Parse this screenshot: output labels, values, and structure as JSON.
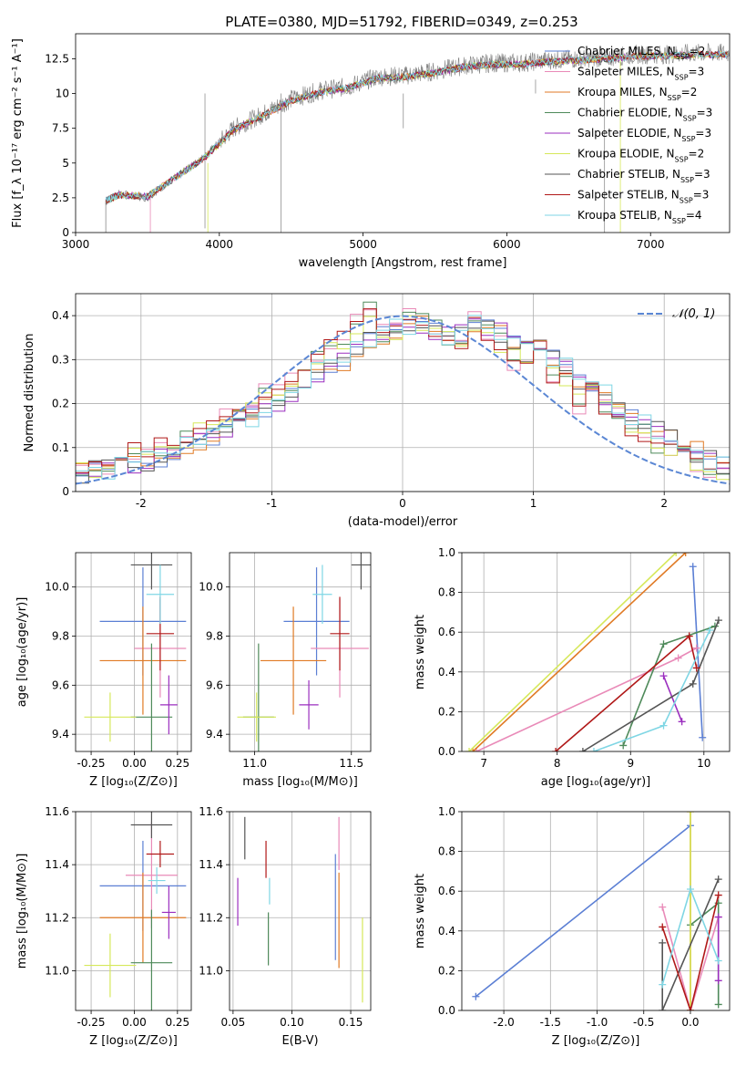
{
  "figure_title": "PLATE=0380, MJD=51792, FIBERID=0349, z=0.253",
  "colors": {
    "Chabrier MILES": "#5b7fd4",
    "Salpeter MILES": "#e98ab8",
    "Kroupa MILES": "#e07a24",
    "Chabrier ELODIE": "#4e8a5a",
    "Salpeter ELODIE": "#9b2fbf",
    "Kroupa ELODIE": "#d6e85a",
    "Chabrier STELIB": "#555555",
    "Salpeter STELIB": "#b01818",
    "Kroupa STELIB": "#7fd6e4",
    "grid": "#b0b0b0",
    "data_spectrum": "#808080",
    "normal_curve": "#5b87d4"
  },
  "chart_data": [
    {
      "type": "line",
      "panel": "spectrum",
      "title": "PLATE=0380, MJD=51792, FIBERID=0349, z=0.253",
      "xlabel": "wavelength [Angstrom, rest frame]",
      "ylabel": "Flux [f_λ 10⁻¹⁷ erg cm⁻² s⁻¹ A⁻¹]",
      "xlim": [
        3000,
        7550
      ],
      "ylim": [
        0,
        14.3
      ],
      "xticks": [
        3000,
        4000,
        5000,
        6000,
        7000
      ],
      "yticks": [
        0.0,
        2.5,
        5.0,
        7.5,
        10.0,
        12.5
      ],
      "grid": false,
      "legend_position": "top-right",
      "legend": [
        {
          "model": "Chabrier MILES",
          "label": "Chabrier MILES, N",
          "n": "2"
        },
        {
          "model": "Salpeter MILES",
          "label": "Salpeter MILES, N",
          "n": "3"
        },
        {
          "model": "Kroupa MILES",
          "label": "Kroupa MILES, N",
          "n": "2"
        },
        {
          "model": "Chabrier ELODIE",
          "label": "Chabrier ELODIE, N",
          "n": "3"
        },
        {
          "model": "Salpeter ELODIE",
          "label": "Salpeter ELODIE, N",
          "n": "3"
        },
        {
          "model": "Kroupa ELODIE",
          "label": "Kroupa ELODIE, N",
          "n": "2"
        },
        {
          "model": "Chabrier STELIB",
          "label": "Chabrier STELIB, N",
          "n": "3"
        },
        {
          "model": "Salpeter STELIB",
          "label": "Salpeter STELIB, N",
          "n": "3"
        },
        {
          "model": "Kroupa STELIB",
          "label": "Kroupa STELIB, N",
          "n": "4"
        }
      ],
      "legend_subscript": "SSP",
      "data_spectrum": {
        "x": [
          3210,
          3300,
          3500,
          3700,
          3900,
          4100,
          4300,
          4500,
          4700,
          4900,
          5100,
          5300,
          5500,
          5700,
          5900,
          6100,
          6300,
          6500,
          6700,
          6900,
          7100,
          7300,
          7550
        ],
        "y": [
          2.2,
          2.8,
          2.5,
          4.0,
          5.5,
          7.5,
          8.5,
          9.6,
          10.2,
          10.5,
          11.2,
          11.3,
          11.6,
          12.0,
          12.2,
          12.2,
          12.4,
          12.5,
          12.6,
          12.8,
          12.8,
          12.9,
          12.9
        ]
      },
      "model_spectrum": {
        "x": [
          3210,
          3300,
          3500,
          3700,
          3900,
          4100,
          4300,
          4500,
          4700,
          4900,
          5100,
          5300,
          5500,
          5700,
          5900,
          6100,
          6300,
          6500,
          6700,
          6900,
          7100,
          7300,
          7550
        ],
        "y": [
          2.3,
          2.7,
          2.6,
          4.0,
          5.4,
          7.4,
          8.4,
          9.5,
          10.1,
          10.4,
          11.1,
          11.2,
          11.5,
          11.9,
          12.1,
          12.1,
          12.3,
          12.4,
          12.5,
          12.7,
          12.7,
          12.8,
          12.8
        ]
      }
    },
    {
      "type": "line",
      "panel": "residual-histogram",
      "xlabel": "(data-model)/error",
      "ylabel": "Normed distribution",
      "xlim": [
        -2.5,
        2.5
      ],
      "ylim": [
        0,
        0.45
      ],
      "xticks": [
        -2,
        -1,
        0,
        1,
        2
      ],
      "yticks": [
        0.0,
        0.1,
        0.2,
        0.3,
        0.4
      ],
      "grid": true,
      "legend_position": "top-right",
      "legend": [
        {
          "label": "𝒩(0, 1)"
        }
      ],
      "histograms": [
        {
          "model": "Chabrier MILES",
          "bin_width": 0.1,
          "bin_start": -2.5,
          "values": [
            0.04,
            0.045,
            0.05,
            0.06,
            0.065,
            0.07,
            0.08,
            0.09,
            0.1,
            0.11,
            0.125,
            0.14,
            0.16,
            0.17,
            0.19,
            0.2,
            0.22,
            0.24,
            0.27,
            0.28,
            0.3,
            0.32,
            0.34,
            0.36,
            0.37,
            0.37,
            0.38,
            0.36,
            0.35,
            0.36,
            0.38,
            0.37,
            0.36,
            0.34,
            0.33,
            0.31,
            0.3,
            0.28,
            0.25,
            0.23,
            0.22,
            0.19,
            0.17,
            0.15,
            0.14,
            0.12,
            0.1,
            0.09,
            0.07,
            0.06
          ]
        },
        {
          "model": "Kroupa ELODIE",
          "bin_width": 0.1,
          "bin_start": -2.5,
          "values": [
            0.05,
            0.05,
            0.06,
            0.08,
            0.09,
            0.08,
            0.1,
            0.11,
            0.12,
            0.14,
            0.15,
            0.17,
            0.18,
            0.19,
            0.22,
            0.23,
            0.25,
            0.28,
            0.3,
            0.33,
            0.34,
            0.38,
            0.41,
            0.36,
            0.37,
            0.4,
            0.38,
            0.37,
            0.35,
            0.34,
            0.39,
            0.36,
            0.34,
            0.3,
            0.31,
            0.33,
            0.27,
            0.26,
            0.2,
            0.23,
            0.19,
            0.17,
            0.14,
            0.13,
            0.11,
            0.1,
            0.08,
            0.06,
            0.05,
            0.04
          ]
        }
      ],
      "normal_curve": {
        "mean": 0,
        "sigma": 1
      }
    },
    {
      "type": "scatter",
      "panel": "age-vs-Z",
      "xlabel": "Z [log₁₀(Z/Z⊙)]",
      "ylabel": "age  [log₁₀(age/yr)]",
      "xlim": [
        -0.34,
        0.33
      ],
      "ylim": [
        9.33,
        10.14
      ],
      "xticks": [
        "-0.25",
        "0.00",
        "0.25"
      ],
      "yticks": [
        "9.4",
        "9.6",
        "9.8",
        "10.0"
      ],
      "grid": true,
      "points": [
        {
          "model": "Chabrier MILES",
          "x": 0.05,
          "y": 9.86,
          "dx": 0.25,
          "dy": 0.22
        },
        {
          "model": "Salpeter MILES",
          "x": 0.15,
          "y": 9.75,
          "dx": 0.15,
          "dy": 0.2
        },
        {
          "model": "Kroupa MILES",
          "x": 0.05,
          "y": 9.7,
          "dx": 0.25,
          "dy": 0.22
        },
        {
          "model": "Chabrier ELODIE",
          "x": 0.1,
          "y": 9.47,
          "dx": 0.12,
          "dy": 0.3
        },
        {
          "model": "Salpeter ELODIE",
          "x": 0.2,
          "y": 9.52,
          "dx": 0.05,
          "dy": 0.12
        },
        {
          "model": "Kroupa ELODIE",
          "x": -0.14,
          "y": 9.47,
          "dx": 0.15,
          "dy": 0.1
        },
        {
          "model": "Chabrier STELIB",
          "x": 0.1,
          "y": 10.09,
          "dx": 0.12,
          "dy": 0.1
        },
        {
          "model": "Salpeter STELIB",
          "x": 0.15,
          "y": 9.81,
          "dx": 0.08,
          "dy": 0.15
        },
        {
          "model": "Kroupa STELIB",
          "x": 0.15,
          "y": 9.97,
          "dx": 0.08,
          "dy": 0.12
        }
      ]
    },
    {
      "type": "scatter",
      "panel": "age-vs-mass",
      "xlabel": "mass [log₁₀(M/M⊙)]",
      "ylabel": "",
      "xlim": [
        10.87,
        11.6
      ],
      "ylim": [
        9.33,
        10.14
      ],
      "xticks": [
        "11.0",
        "11.5"
      ],
      "yticks": [
        "9.4",
        "9.6",
        "9.8",
        "10.0"
      ],
      "grid": true,
      "points": [
        {
          "model": "Chabrier MILES",
          "x": 11.32,
          "y": 9.86,
          "dx": 0.17,
          "dy": 0.22
        },
        {
          "model": "Salpeter MILES",
          "x": 11.44,
          "y": 9.75,
          "dx": 0.15,
          "dy": 0.2
        },
        {
          "model": "Kroupa MILES",
          "x": 11.2,
          "y": 9.7,
          "dx": 0.17,
          "dy": 0.22
        },
        {
          "model": "Chabrier ELODIE",
          "x": 11.02,
          "y": 9.47,
          "dx": 0.08,
          "dy": 0.3
        },
        {
          "model": "Salpeter ELODIE",
          "x": 11.28,
          "y": 9.52,
          "dx": 0.05,
          "dy": 0.1
        },
        {
          "model": "Kroupa ELODIE",
          "x": 11.01,
          "y": 9.47,
          "dx": 0.1,
          "dy": 0.1
        },
        {
          "model": "Chabrier STELIB",
          "x": 11.55,
          "y": 10.09,
          "dx": 0.05,
          "dy": 0.1
        },
        {
          "model": "Salpeter STELIB",
          "x": 11.44,
          "y": 9.81,
          "dx": 0.05,
          "dy": 0.15
        },
        {
          "model": "Kroupa STELIB",
          "x": 11.35,
          "y": 9.97,
          "dx": 0.05,
          "dy": 0.12
        }
      ]
    },
    {
      "type": "line",
      "panel": "mass-weight-vs-age",
      "xlabel": "age  [log₁₀(age/yr)]",
      "ylabel": "mass weight",
      "xlim": [
        6.7,
        10.35
      ],
      "ylim": [
        0,
        1
      ],
      "xticks": [
        "7",
        "8",
        "9",
        "10"
      ],
      "yticks": [
        "0.0",
        "0.2",
        "0.4",
        "0.6",
        "0.8",
        "1.0"
      ],
      "grid": true,
      "series": [
        {
          "model": "Chabrier MILES",
          "x": [
            9.85,
            9.98
          ],
          "y": [
            0.93,
            0.07
          ]
        },
        {
          "model": "Salpeter MILES",
          "x": [
            6.9,
            9.65,
            9.9
          ],
          "y": [
            0.0,
            0.47,
            0.52
          ]
        },
        {
          "model": "Kroupa MILES",
          "x": [
            6.85,
            9.75
          ],
          "y": [
            0.0,
            1.0
          ]
        },
        {
          "model": "Chabrier ELODIE",
          "x": [
            8.9,
            9.45,
            10.15
          ],
          "y": [
            0.03,
            0.54,
            0.63
          ]
        },
        {
          "model": "Salpeter ELODIE",
          "x": [
            9.45,
            9.7
          ],
          "y": [
            0.38,
            0.15
          ]
        },
        {
          "model": "Kroupa ELODIE",
          "x": [
            6.8,
            9.62
          ],
          "y": [
            0.0,
            1.0
          ]
        },
        {
          "model": "Chabrier STELIB",
          "x": [
            8.35,
            9.85,
            10.2
          ],
          "y": [
            0.0,
            0.34,
            0.66
          ]
        },
        {
          "model": "Salpeter STELIB",
          "x": [
            7.98,
            9.8,
            9.9
          ],
          "y": [
            0.0,
            0.58,
            0.42
          ]
        },
        {
          "model": "Kroupa STELIB",
          "x": [
            8.5,
            9.45,
            10.08
          ],
          "y": [
            0.0,
            0.13,
            0.61
          ]
        }
      ]
    },
    {
      "type": "scatter",
      "panel": "mass-vs-Z",
      "xlabel": "Z [log₁₀(Z/Z⊙)]",
      "ylabel": "mass [log₁₀(M/M⊙)]",
      "xlim": [
        -0.34,
        0.33
      ],
      "ylim": [
        10.85,
        11.6
      ],
      "xticks": [
        "-0.25",
        "0.00",
        "0.25"
      ],
      "yticks": [
        "11.0",
        "11.2",
        "11.4",
        "11.6"
      ],
      "grid": true,
      "points": [
        {
          "model": "Chabrier MILES",
          "x": 0.05,
          "y": 11.32,
          "dx": 0.25,
          "dy": 0.17
        },
        {
          "model": "Salpeter MILES",
          "x": 0.1,
          "y": 11.36,
          "dx": 0.15,
          "dy": 0.2
        },
        {
          "model": "Kroupa MILES",
          "x": 0.05,
          "y": 11.2,
          "dx": 0.25,
          "dy": 0.17
        },
        {
          "model": "Chabrier ELODIE",
          "x": 0.1,
          "y": 11.03,
          "dx": 0.12,
          "dy": 0.2
        },
        {
          "model": "Salpeter ELODIE",
          "x": 0.2,
          "y": 11.22,
          "dx": 0.04,
          "dy": 0.1
        },
        {
          "model": "Kroupa ELODIE",
          "x": -0.14,
          "y": 11.02,
          "dx": 0.15,
          "dy": 0.12
        },
        {
          "model": "Chabrier STELIB",
          "x": 0.1,
          "y": 11.55,
          "dx": 0.12,
          "dy": 0.05
        },
        {
          "model": "Salpeter STELIB",
          "x": 0.15,
          "y": 11.44,
          "dx": 0.08,
          "dy": 0.05
        },
        {
          "model": "Kroupa STELIB",
          "x": 0.13,
          "y": 11.34,
          "dx": 0.05,
          "dy": 0.05
        }
      ]
    },
    {
      "type": "scatter",
      "panel": "mass-vs-EBV",
      "xlabel": "E(B-V)",
      "ylabel": "",
      "xlim": [
        0.047,
        0.167
      ],
      "ylim": [
        10.85,
        11.6
      ],
      "xticks": [
        "0.05",
        "0.10",
        "0.15"
      ],
      "yticks": [
        "11.0",
        "11.2",
        "11.4",
        "11.6"
      ],
      "grid": true,
      "points": [
        {
          "model": "Chabrier MILES",
          "x": 0.137,
          "y": 11.24,
          "dy": 0.2
        },
        {
          "model": "Salpeter MILES",
          "x": 0.14,
          "y": 11.48,
          "dy": 0.1
        },
        {
          "model": "Kroupa MILES",
          "x": 0.14,
          "y": 11.19,
          "dy": 0.18
        },
        {
          "model": "Chabrier ELODIE",
          "x": 0.08,
          "y": 11.12,
          "dy": 0.1
        },
        {
          "model": "Salpeter ELODIE",
          "x": 0.054,
          "y": 11.26,
          "dy": 0.09
        },
        {
          "model": "Kroupa ELODIE",
          "x": 0.16,
          "y": 11.04,
          "dy": 0.16
        },
        {
          "model": "Chabrier STELIB",
          "x": 0.06,
          "y": 11.5,
          "dy": 0.08
        },
        {
          "model": "Salpeter STELIB",
          "x": 0.078,
          "y": 11.42,
          "dy": 0.07
        },
        {
          "model": "Kroupa STELIB",
          "x": 0.081,
          "y": 11.3,
          "dy": 0.05
        }
      ]
    },
    {
      "type": "line",
      "panel": "mass-weight-vs-Z",
      "xlabel": "Z [log₁₀(Z/Z⊙)]",
      "ylabel": "mass weight",
      "xlim": [
        -2.45,
        0.42
      ],
      "ylim": [
        0,
        1
      ],
      "xticks": [
        "-2.0",
        "-1.5",
        "-1.0",
        "-0.5",
        "0.0"
      ],
      "yticks": [
        "0.0",
        "0.2",
        "0.4",
        "0.6",
        "0.8",
        "1.0"
      ],
      "grid": true,
      "series": [
        {
          "model": "Chabrier MILES",
          "x": [
            -2.3,
            0.0
          ],
          "y": [
            0.07,
            0.93
          ]
        },
        {
          "model": "Salpeter MILES",
          "x": [
            -0.3,
            0.0,
            0.3
          ],
          "y": [
            0.52,
            0.0,
            0.47
          ]
        },
        {
          "model": "Kroupa MILES",
          "x": [
            0.0,
            0.0
          ],
          "y": [
            0.0,
            1.0
          ]
        },
        {
          "model": "Chabrier ELODIE",
          "x": [
            0.0,
            0.3,
            0.3
          ],
          "y": [
            0.43,
            0.54,
            0.03
          ]
        },
        {
          "model": "Salpeter ELODIE",
          "x": [
            0.3,
            0.3
          ],
          "y": [
            0.15,
            0.47
          ]
        },
        {
          "model": "Kroupa ELODIE",
          "x": [
            0.0,
            0.0
          ],
          "y": [
            0.0,
            1.0
          ]
        },
        {
          "model": "Chabrier STELIB",
          "x": [
            -0.3,
            -0.3,
            0.3
          ],
          "y": [
            0.34,
            0.0,
            0.66
          ]
        },
        {
          "model": "Salpeter STELIB",
          "x": [
            -0.3,
            0.0,
            0.3
          ],
          "y": [
            0.42,
            0.0,
            0.58
          ]
        },
        {
          "model": "Kroupa STELIB",
          "x": [
            -0.3,
            0.0,
            0.3
          ],
          "y": [
            0.13,
            0.61,
            0.25
          ]
        }
      ]
    }
  ]
}
